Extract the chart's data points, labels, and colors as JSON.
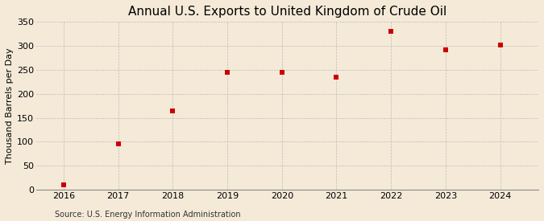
{
  "title": "Annual U.S. Exports to United Kingdom of Crude Oil",
  "ylabel": "Thousand Barrels per Day",
  "source": "Source: U.S. Energy Information Administration",
  "years": [
    2016,
    2017,
    2018,
    2019,
    2020,
    2021,
    2022,
    2023,
    2024
  ],
  "values": [
    10,
    96,
    165,
    245,
    245,
    234,
    330,
    291,
    302
  ],
  "ylim": [
    0,
    350
  ],
  "yticks": [
    0,
    50,
    100,
    150,
    200,
    250,
    300,
    350
  ],
  "marker_color": "#cc0000",
  "marker": "s",
  "marker_size": 4,
  "background_color": "#f5ead8",
  "grid_color": "#bbbbbb",
  "title_fontsize": 11,
  "label_fontsize": 8,
  "tick_fontsize": 8,
  "source_fontsize": 7
}
